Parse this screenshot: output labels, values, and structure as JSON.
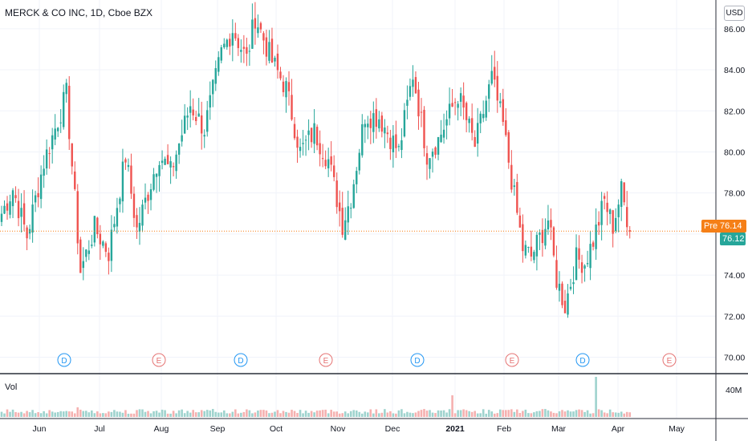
{
  "header": {
    "symbol_title": "MERCK & CO INC, 1D, Cboe BZX",
    "currency": "USD",
    "volume_label": "Vol"
  },
  "price_tags": {
    "pre_label": "Pre",
    "pre_value": "76.14",
    "last_value": "76.12"
  },
  "colors": {
    "up": "#26a69a",
    "down": "#ef5350",
    "vol_up": "#9fd3ce",
    "vol_down": "#f5b1b0",
    "dividend": "#2196f3",
    "earnings": "#e57373",
    "pre_line": "#f57f17",
    "grid": "#f0f3fa"
  },
  "chart_data": {
    "type": "candlestick",
    "title": "MERCK & CO INC, 1D, Cboe BZX",
    "currency": "USD",
    "y_ticks": [
      70.0,
      72.0,
      74.0,
      76.0,
      78.0,
      80.0,
      82.0,
      84.0,
      86.0
    ],
    "ylim": [
      69.2,
      87.4
    ],
    "volume_tick": "40M",
    "x_tick_labels": [
      "Jun",
      "Jul",
      "Aug",
      "Sep",
      "Oct",
      "Nov",
      "Dec",
      "2021",
      "Feb",
      "Mar",
      "Apr",
      "May"
    ],
    "price_path_anchors": [
      [
        0,
        77.0
      ],
      [
        4,
        78.2
      ],
      [
        9,
        75.9
      ],
      [
        15,
        79.5
      ],
      [
        23,
        82.8
      ],
      [
        28,
        74.2
      ],
      [
        33,
        76.3
      ],
      [
        38,
        75.1
      ],
      [
        44,
        79.8
      ],
      [
        48,
        76.2
      ],
      [
        56,
        79.9
      ],
      [
        60,
        79.0
      ],
      [
        67,
        82.3
      ],
      [
        72,
        81.1
      ],
      [
        78,
        84.8
      ],
      [
        82,
        86.0
      ],
      [
        87,
        84.5
      ],
      [
        90,
        86.6
      ],
      [
        96,
        84.4
      ],
      [
        101,
        83.1
      ],
      [
        106,
        80.0
      ],
      [
        111,
        81.0
      ],
      [
        116,
        79.6
      ],
      [
        121,
        76.5
      ],
      [
        124,
        77.8
      ],
      [
        129,
        81.8
      ],
      [
        134,
        81.7
      ],
      [
        141,
        80.0
      ],
      [
        146,
        83.8
      ],
      [
        151,
        79.9
      ],
      [
        155,
        80.6
      ],
      [
        162,
        82.8
      ],
      [
        168,
        80.3
      ],
      [
        174,
        83.6
      ],
      [
        178,
        81.3
      ],
      [
        182,
        77.8
      ],
      [
        185,
        75.3
      ],
      [
        188,
        74.9
      ],
      [
        194,
        76.7
      ],
      [
        197,
        73.8
      ],
      [
        200,
        72.5
      ],
      [
        204,
        74.8
      ],
      [
        207,
        74.6
      ],
      [
        210,
        75.7
      ],
      [
        214,
        77.6
      ],
      [
        217,
        76.4
      ],
      [
        220,
        78.1
      ],
      [
        223,
        76.2
      ]
    ],
    "events": [
      {
        "type": "dividend",
        "label": "D",
        "month": "Jun"
      },
      {
        "type": "earnings",
        "label": "E",
        "month": "Aug"
      },
      {
        "type": "dividend",
        "label": "D",
        "month": "Sep"
      },
      {
        "type": "earnings",
        "label": "E",
        "month": "Oct"
      },
      {
        "type": "dividend",
        "label": "D",
        "month": "Dec"
      },
      {
        "type": "earnings",
        "label": "E",
        "month": "Feb"
      },
      {
        "type": "dividend",
        "label": "D",
        "month": "Mar"
      },
      {
        "type": "earnings",
        "label": "E",
        "month": "Apr"
      }
    ],
    "last_price": 76.12,
    "premarket_price": 76.14
  }
}
